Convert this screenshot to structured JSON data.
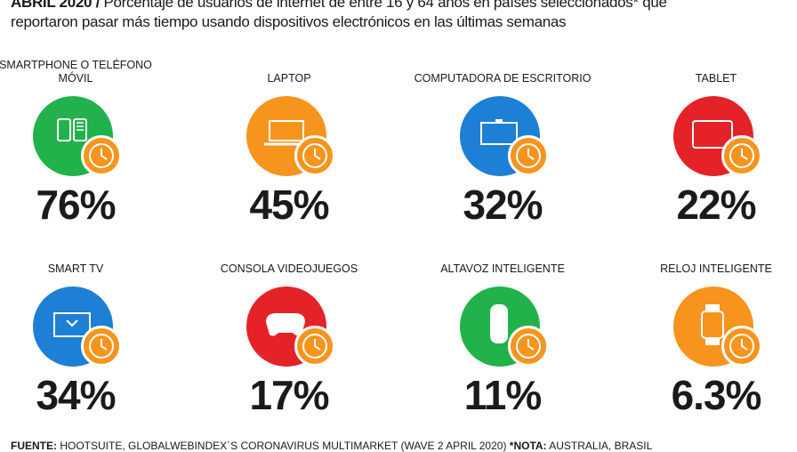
{
  "header": {
    "bold": "ABRIL 2020 /",
    "line1": " Porcentaje de usuarios de internet de entre 16 y 64 años en países seleccionados* que",
    "line2": "reportaron pasar más tiempo usando dispositivos electrónicos en las últimas semanas"
  },
  "colors": {
    "green": "#22b24c",
    "orange": "#f7941d",
    "blue": "#1e7fd6",
    "red": "#e62229"
  },
  "items": [
    {
      "label": "Smartphone o teléfono móvil",
      "value": "76%",
      "icon": "smartphone-icon",
      "color": "#22b24c"
    },
    {
      "label": "Laptop",
      "value": "45%",
      "icon": "laptop-icon",
      "color": "#f7941d"
    },
    {
      "label": "Computadora de escritorio",
      "value": "32%",
      "icon": "desktop-computer-icon",
      "color": "#1e7fd6"
    },
    {
      "label": "Tablet",
      "value": "22%",
      "icon": "tablet-icon",
      "color": "#e62229"
    },
    {
      "label": "Smart TV",
      "value": "34%",
      "icon": "smart-tv-icon",
      "color": "#1e7fd6"
    },
    {
      "label": "Consola videojuegos",
      "value": "17%",
      "icon": "gamepad-icon",
      "color": "#e62229"
    },
    {
      "label": "Altavoz inteligente",
      "value": "11%",
      "icon": "smart-speaker-icon",
      "color": "#22b24c"
    },
    {
      "label": "Reloj inteligente",
      "value": "6.3%",
      "icon": "smartwatch-icon",
      "color": "#f7941d"
    }
  ],
  "footer": {
    "source_label": "FUENTE:",
    "source": " HOOTSUITE, GLOBALWEBINDEX´S CORONAVIRUS MULTIMARKET (WAVE 2 APRIL 2020) ",
    "note_label": "*NOTA:",
    "note": " AUSTRALIA, BRASIL"
  }
}
